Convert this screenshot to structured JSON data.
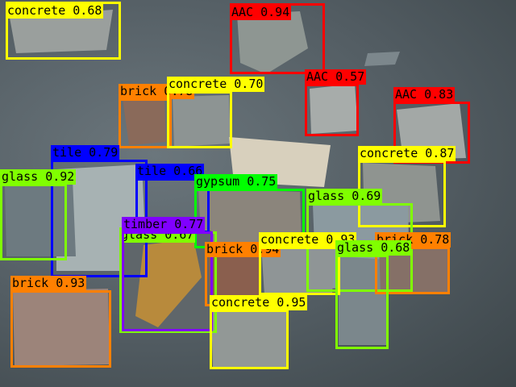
{
  "detections": [
    {
      "label": "concrete",
      "score": "0.68",
      "color": "#ffff00"
    },
    {
      "label": "AAC",
      "score": "0.94",
      "color": "#ff0000"
    },
    {
      "label": "AAC",
      "score": "0.57",
      "color": "#ff0000"
    },
    {
      "label": "AAC",
      "score": "0.83",
      "color": "#ff0000"
    },
    {
      "label": "brick",
      "score": "0.78",
      "color": "#ff8000"
    },
    {
      "label": "concrete",
      "score": "0.70",
      "color": "#ffff00"
    },
    {
      "label": "concrete",
      "score": "0.87",
      "color": "#ffff00"
    },
    {
      "label": "tile",
      "score": "0.79",
      "color": "#0000ff"
    },
    {
      "label": "tile",
      "score": "0.66",
      "color": "#0000ff"
    },
    {
      "label": "glass",
      "score": "0.92",
      "color": "#80ff00"
    },
    {
      "label": "gypsum",
      "score": "0.75",
      "color": "#00ff00"
    },
    {
      "label": "glass",
      "score": "0.69",
      "color": "#80ff00"
    },
    {
      "label": "timber",
      "score": "0.77",
      "color": "#8000ff"
    },
    {
      "label": "glass",
      "score": "0.67",
      "color": "#80ff00"
    },
    {
      "label": "brick",
      "score": "0.94",
      "color": "#ff8000"
    },
    {
      "label": "concrete",
      "score": "0.93",
      "color": "#ffff00"
    },
    {
      "label": "glass",
      "score": "0.68",
      "color": "#80ff00"
    },
    {
      "label": "brick",
      "score": "0.78",
      "color": "#ff8000"
    },
    {
      "label": "brick",
      "score": "0.93",
      "color": "#ff8000"
    },
    {
      "label": "concrete",
      "score": "0.95",
      "color": "#ffff00"
    }
  ]
}
